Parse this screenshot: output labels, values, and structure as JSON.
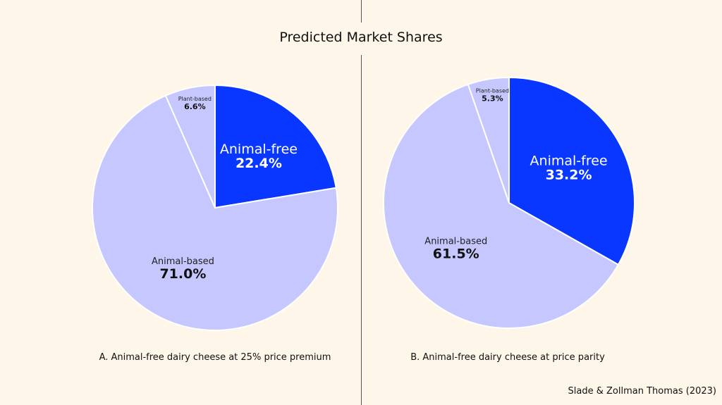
{
  "chart_data": {
    "type": "pie",
    "title": "Predicted Market Shares",
    "source": "Slade & Zollman Thomas (2023)",
    "colors": {
      "Animal-free": "#0a37ff",
      "Animal-based": "#c7c7ff",
      "Plant-based": "#c7c7ff"
    },
    "charts": [
      {
        "caption": "A. Animal-free dairy cheese at 25% price premium",
        "slices": [
          {
            "label": "Animal-free",
            "value": 22.4,
            "value_label": "22.4%"
          },
          {
            "label": "Animal-based",
            "value": 71.0,
            "value_label": "71.0%"
          },
          {
            "label": "Plant-based",
            "value": 6.6,
            "value_label": "6.6%"
          }
        ]
      },
      {
        "caption": "B. Animal-free dairy cheese at price parity",
        "slices": [
          {
            "label": "Animal-free",
            "value": 33.2,
            "value_label": "33.2%"
          },
          {
            "label": "Animal-based",
            "value": 61.5,
            "value_label": "61.5%"
          },
          {
            "label": "Plant-based",
            "value": 5.3,
            "value_label": "5.3%"
          }
        ]
      }
    ]
  }
}
